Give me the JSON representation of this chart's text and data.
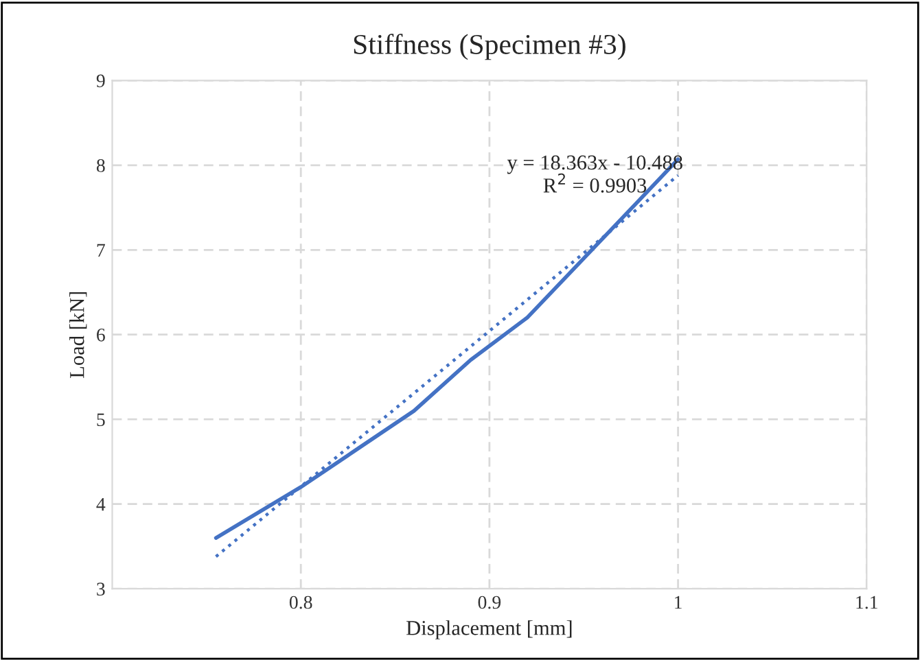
{
  "chart_data": {
    "type": "line",
    "title": "Stiffness (Specimen #3)",
    "xlabel": "Displacement [mm]",
    "ylabel": "Load [kN]",
    "series": [
      {
        "color": "#4472c4",
        "line_style": "solid",
        "x": [
          0.755,
          0.8,
          0.83,
          0.86,
          0.89,
          0.92,
          0.95,
          0.98,
          1.0
        ],
        "values": [
          3.6,
          4.2,
          4.65,
          5.1,
          5.7,
          6.2,
          6.9,
          7.6,
          8.07
        ]
      },
      {
        "color": "#4472c4",
        "line_style": "dotted",
        "x": [
          0.755,
          1.0
        ],
        "values": [
          3.38,
          7.88
        ]
      }
    ],
    "annotations": [
      "y = 18.363x - 10.488",
      "R$^{2}$ = 0.9903"
    ],
    "xlim": [
      0.7,
      1.1
    ],
    "xticks": [
      0.8,
      0.9,
      1,
      1.1
    ],
    "ylim": [
      3,
      9
    ],
    "yticks": [
      3,
      4,
      5,
      6,
      7,
      8,
      9
    ],
    "grid": true,
    "legend": false,
    "marker": "none"
  }
}
